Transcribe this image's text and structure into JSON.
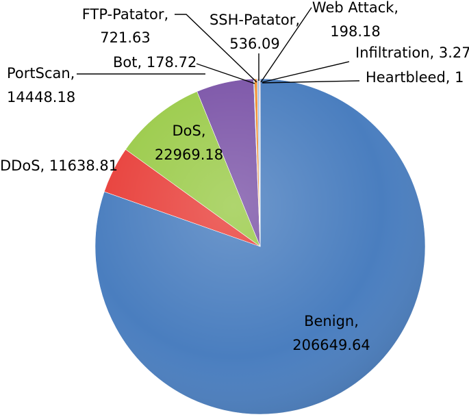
{
  "chart_data": {
    "type": "pie",
    "title": "",
    "slices": [
      {
        "name": "Heartbleed",
        "value": 1,
        "label_name": "Heartbleed,",
        "label_value": "1",
        "color": "#4f81bd"
      },
      {
        "name": "Benign",
        "value": 206649.64,
        "label_name": "Benign,",
        "label_value": "206649.64",
        "color": "#4a7ebf"
      },
      {
        "name": "DDoS",
        "value": 11638.81,
        "label_name": "DDoS,",
        "label_value": "11638.81",
        "color": "#e8413c"
      },
      {
        "name": "DoS",
        "value": 22969.18,
        "label_name": "DoS,",
        "label_value": "22969.18",
        "color": "#9bcb4a"
      },
      {
        "name": "PortScan",
        "value": 14448.18,
        "label_name": "PortScan,",
        "label_value": "14448.18",
        "color": "#7c55a8"
      },
      {
        "name": "Bot",
        "value": 178.72,
        "label_name": "Bot,",
        "label_value": "178.72",
        "color": "#3fb4d0"
      },
      {
        "name": "FTP-Patator",
        "value": 721.63,
        "label_name": "FTP-Patator,",
        "label_value": "721.63",
        "color": "#f08c2e"
      },
      {
        "name": "SSH-Patator",
        "value": 536.09,
        "label_name": "SSH-Patator,",
        "label_value": "536.09",
        "color": "#9fbde0"
      },
      {
        "name": "Web Attack",
        "value": 198.18,
        "label_name": "Web Attack,",
        "label_value": "198.18",
        "color": "#f09a9a"
      },
      {
        "name": "Infiltration",
        "value": 3.27,
        "label_name": "Infiltration,",
        "label_value": "3.27",
        "color": "#c3d69b"
      }
    ],
    "legend": "none",
    "style": "3d-shaded pie with leader lines"
  }
}
